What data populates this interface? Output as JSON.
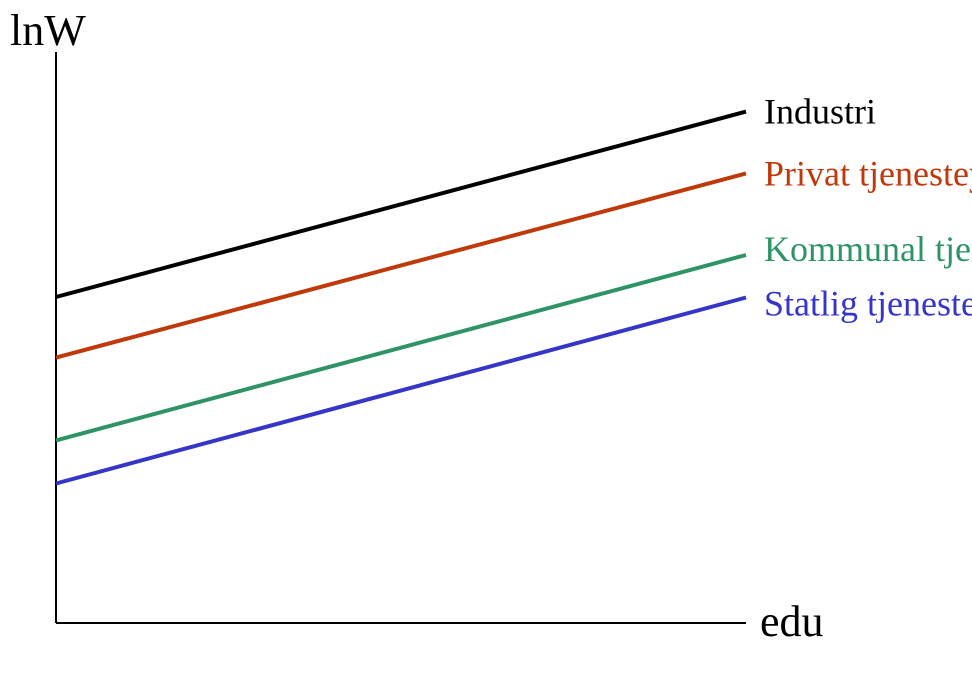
{
  "chart_data": {
    "type": "line",
    "xlabel": "edu",
    "ylabel": "lnW",
    "xlim": [
      0,
      1
    ],
    "ylim": [
      0,
      1
    ],
    "grid": false,
    "legend": "inline labels at line ends",
    "series": [
      {
        "name": "Industri",
        "color": "#000000",
        "x": [
          0,
          0.69
        ],
        "y": [
          0.575,
          0.902
        ]
      },
      {
        "name": "Privat tjenesteyting",
        "color": "#c0390b",
        "x": [
          0,
          0.69
        ],
        "y": [
          0.468,
          0.793
        ]
      },
      {
        "name": "Kommunal tjenesteyting",
        "color": "#2e9466",
        "x": [
          0,
          0.69
        ],
        "y": [
          0.322,
          0.649
        ]
      },
      {
        "name": "Statlig tjenesteyting",
        "color": "#3535c8",
        "x": [
          0,
          0.69
        ],
        "y": [
          0.246,
          0.574
        ]
      }
    ]
  }
}
